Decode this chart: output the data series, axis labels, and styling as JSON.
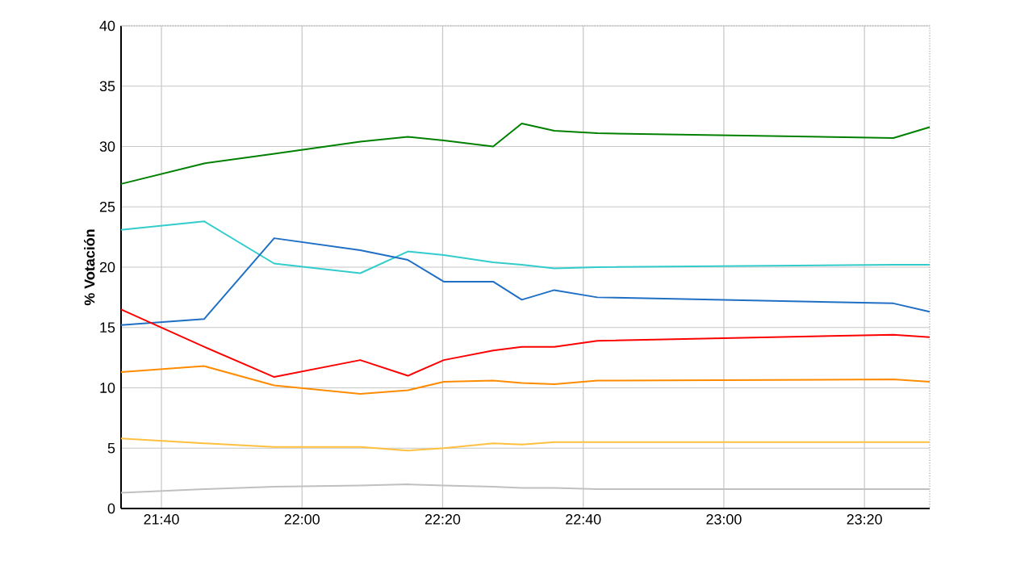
{
  "chart_data": {
    "type": "line",
    "ylabel": "% Votación",
    "grid": true,
    "marker": "none",
    "line_style": "solid",
    "x": [
      21.571,
      21.768,
      21.934,
      22.138,
      22.251,
      22.336,
      22.453,
      22.521,
      22.598,
      22.7,
      23.402,
      23.488
    ],
    "xlim": [
      21.571,
      23.488
    ],
    "xticks": [
      {
        "value": 21.6667,
        "label": "21:40"
      },
      {
        "value": 22.0,
        "label": "22:00"
      },
      {
        "value": 22.3333,
        "label": "22:20"
      },
      {
        "value": 22.6667,
        "label": "22:40"
      },
      {
        "value": 23.0,
        "label": "23:00"
      },
      {
        "value": 23.3333,
        "label": "23:20"
      }
    ],
    "ylim": [
      0,
      40
    ],
    "yticks": [
      0,
      5,
      10,
      15,
      20,
      25,
      30,
      35,
      40
    ],
    "series": [
      {
        "color": "#008000",
        "values": [
          26.9,
          28.6,
          29.4,
          30.4,
          30.8,
          30.5,
          30.0,
          31.9,
          31.3,
          31.1,
          30.7,
          31.6
        ]
      },
      {
        "color": "#33cccc",
        "values": [
          23.1,
          23.8,
          20.3,
          19.5,
          21.3,
          21.0,
          20.4,
          20.2,
          19.9,
          20.0,
          20.2,
          20.2
        ]
      },
      {
        "color": "#1f6fc5",
        "values": [
          15.2,
          15.7,
          22.4,
          21.4,
          20.6,
          18.8,
          18.8,
          17.3,
          18.1,
          17.5,
          17.0,
          16.3
        ]
      },
      {
        "color": "#ff0000",
        "values": [
          16.5,
          13.4,
          10.9,
          12.3,
          11.0,
          12.3,
          13.1,
          13.4,
          13.4,
          13.9,
          14.4,
          14.2
        ]
      },
      {
        "color": "#ff8c00",
        "values": [
          11.3,
          11.8,
          10.2,
          9.5,
          9.8,
          10.5,
          10.6,
          10.4,
          10.3,
          10.6,
          10.7,
          10.5
        ]
      },
      {
        "color": "#ffc040",
        "values": [
          5.8,
          5.4,
          5.1,
          5.1,
          4.8,
          5.0,
          5.4,
          5.3,
          5.5,
          5.5,
          5.5,
          5.5
        ]
      },
      {
        "color": "#c0c0c0",
        "values": [
          1.3,
          1.6,
          1.8,
          1.9,
          2.0,
          1.9,
          1.8,
          1.7,
          1.7,
          1.6,
          1.6,
          1.6
        ]
      }
    ]
  }
}
